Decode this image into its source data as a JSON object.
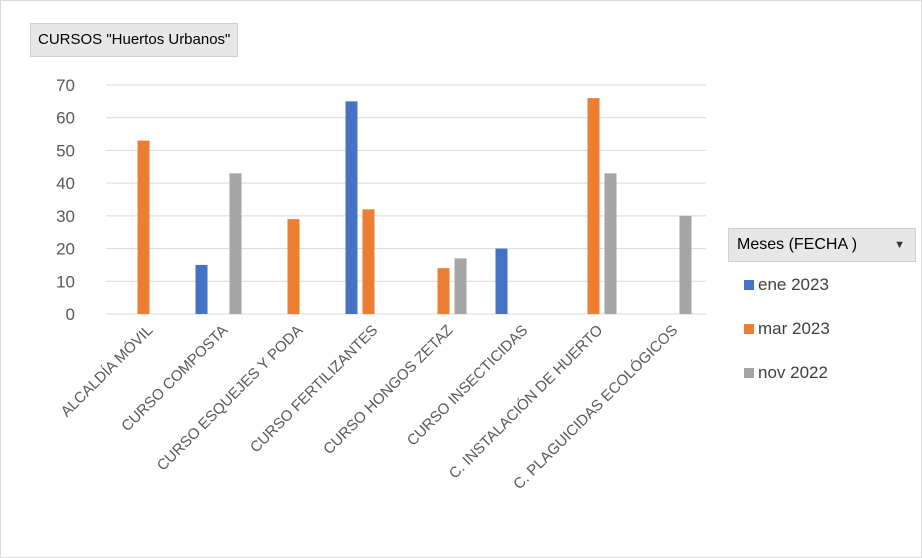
{
  "chart_data": {
    "type": "bar",
    "title": "CURSOS \"Huertos Urbanos\"",
    "categories": [
      "ALCALDÍA MÓVIL",
      "CURSO COMPOSTA",
      "CURSO ESQUEJES Y PODA",
      "CURSO FERTILIZANTES",
      "CURSO HONGOS ZETAZ",
      "CURSO INSECTICIDAS",
      "C. INSTALACIÓN DE HUERTO",
      "C. PLAGUICIDAS ECOLÓGICOS"
    ],
    "series": [
      {
        "name": "ene 2023",
        "color": "#4472c4",
        "values": [
          null,
          15,
          null,
          65,
          null,
          20,
          null,
          null
        ]
      },
      {
        "name": "mar 2023",
        "color": "#ed7d31",
        "values": [
          53,
          null,
          29,
          32,
          14,
          null,
          66,
          null
        ]
      },
      {
        "name": "nov 2022",
        "color": "#a5a5a5",
        "values": [
          null,
          43,
          null,
          null,
          17,
          null,
          43,
          30
        ]
      }
    ],
    "yticks": [
      "0",
      "10",
      "20",
      "30",
      "40",
      "50",
      "60",
      "70"
    ],
    "ylim": [
      0,
      70
    ],
    "grid": true,
    "legend": {
      "title": "Meses (FECHA )",
      "position": "right"
    }
  }
}
